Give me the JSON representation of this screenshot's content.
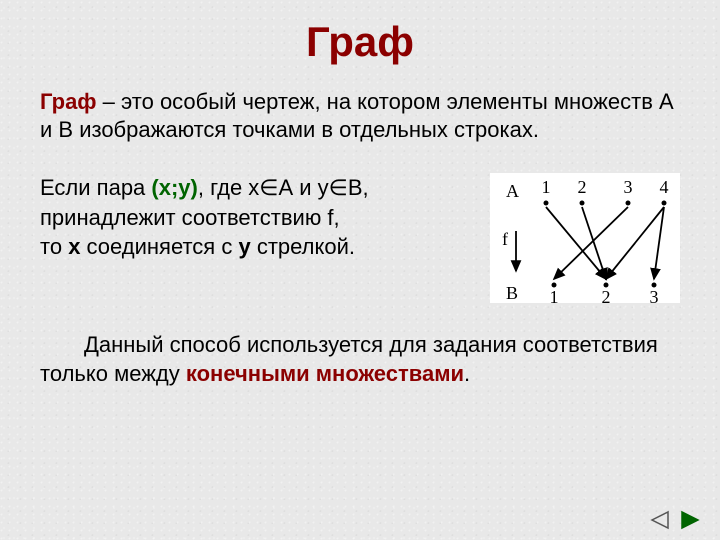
{
  "title": "Граф",
  "para1": {
    "lead": "Граф",
    "rest": " – это особый чертеж, на котором элементы множеств А и В изображаются точками в отдельных строках."
  },
  "para2": {
    "l1a": "Если пара ",
    "l1b": "(х;у)",
    "l1c": ", где х∈А и у∈В,",
    "l2": "принадлежит соответствию f,",
    "l3a": "то ",
    "l3b": "х",
    "l3c": " соединяется с ",
    "l3d": "у",
    "l3e": " стрелкой."
  },
  "para3": {
    "a": "Данный способ используется для задания соответствия только между ",
    "b": "конечными множествами",
    "c": "."
  },
  "diagram": {
    "type": "network",
    "labelA": "A",
    "labelB": "B",
    "labelF": "f",
    "topNumbers": [
      "1",
      "2",
      "3",
      "4"
    ],
    "bottomNumbers": [
      "1",
      "2",
      "3"
    ],
    "topDotColor": "#000000",
    "bottomDotColor": "#000000",
    "arrowColor": "#000000",
    "bgColor": "#ffffff",
    "topY": 30,
    "bottomY": 112,
    "topX": [
      56,
      92,
      138,
      174
    ],
    "bottomX": [
      64,
      116,
      164
    ],
    "edges": [
      {
        "from": 0,
        "to": 1
      },
      {
        "from": 1,
        "to": 1
      },
      {
        "from": 2,
        "to": 0
      },
      {
        "from": 3,
        "to": 1
      },
      {
        "from": 3,
        "to": 2
      }
    ],
    "dotRadius": 2.5,
    "arrowHeadSize": 7,
    "fontSize": 18
  },
  "nav": {
    "prev_enabled": false,
    "next_enabled": true
  }
}
